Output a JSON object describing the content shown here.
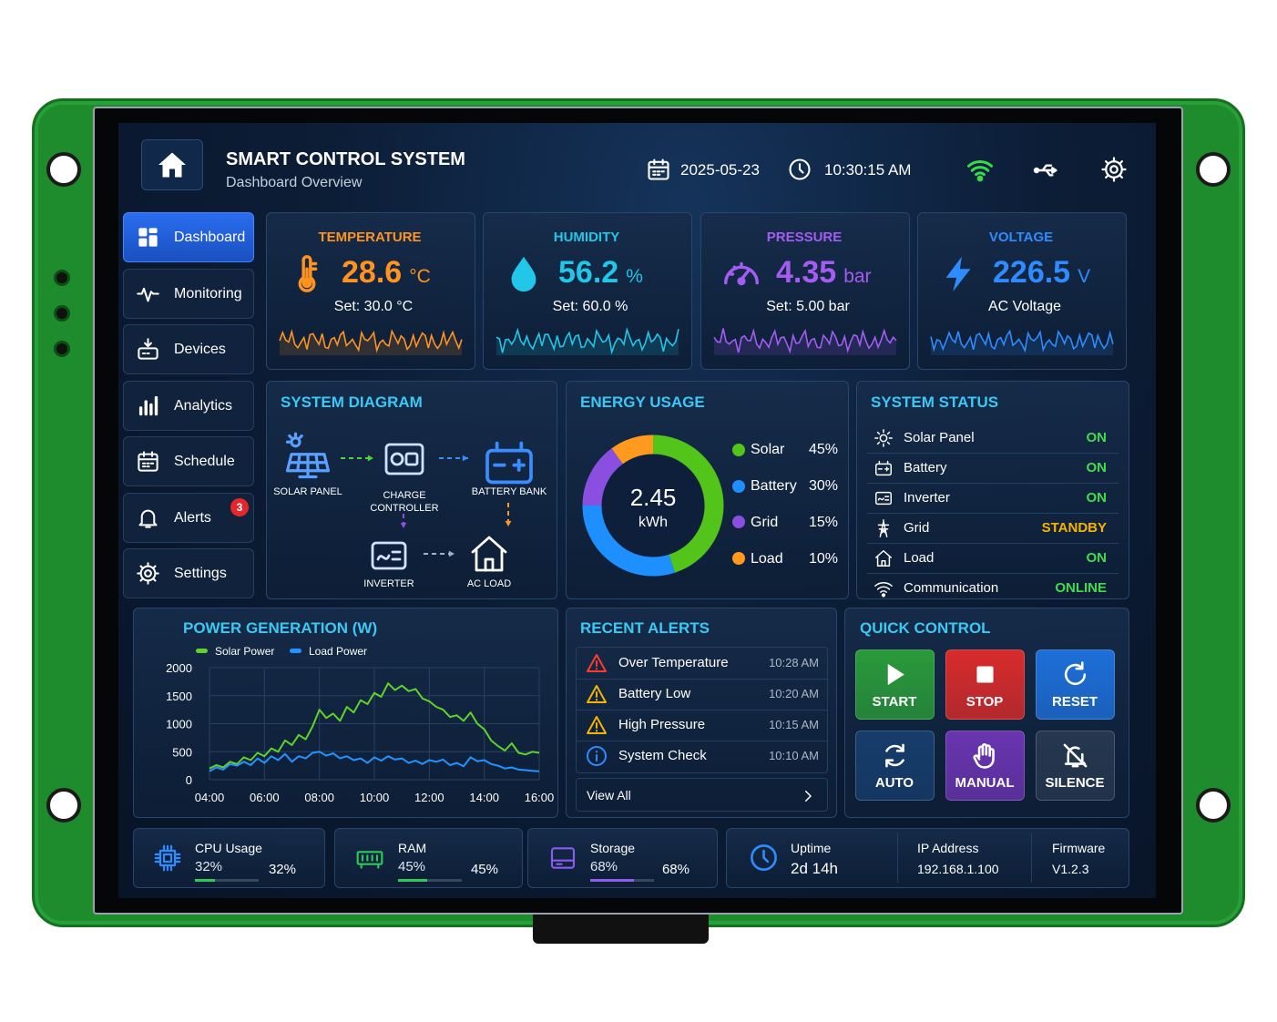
{
  "header": {
    "title": "SMART CONTROL SYSTEM",
    "subtitle": "Dashboard Overview",
    "date": "2025-05-23",
    "time": "10:30:15 AM"
  },
  "nav": [
    {
      "label": "Dashboard",
      "active": true
    },
    {
      "label": "Monitoring"
    },
    {
      "label": "Devices"
    },
    {
      "label": "Analytics"
    },
    {
      "label": "Schedule"
    },
    {
      "label": "Alerts",
      "badge": 3
    },
    {
      "label": "Settings"
    }
  ],
  "cards": [
    {
      "title": "TEMPERATURE",
      "value": 28.6,
      "unit": "°C",
      "setpoint": "Set: 30.0 °C",
      "color": "#ff9321"
    },
    {
      "title": "HUMIDITY",
      "value": 56.2,
      "unit": "%",
      "setpoint": "Set: 60.0 %",
      "color": "#22c6e8"
    },
    {
      "title": "PRESSURE",
      "value": 4.35,
      "unit": "bar",
      "setpoint": "Set: 5.00 bar",
      "color": "#a45cf2"
    },
    {
      "title": "VOLTAGE",
      "value": 226.5,
      "unit": "V",
      "setpoint": "AC Voltage",
      "color": "#2f8cff"
    }
  ],
  "diagram": {
    "title": "SYSTEM DIAGRAM",
    "nodes": [
      "SOLAR PANEL",
      "CHARGE CONTROLLER",
      "BATTERY BANK",
      "INVERTER",
      "AC LOAD"
    ]
  },
  "status": {
    "title": "SYSTEM STATUS",
    "items": [
      {
        "name": "Solar Panel",
        "state": "ON",
        "color": "#3fdc4e"
      },
      {
        "name": "Battery",
        "state": "ON",
        "color": "#3fdc4e"
      },
      {
        "name": "Inverter",
        "state": "ON",
        "color": "#3fdc4e"
      },
      {
        "name": "Grid",
        "state": "STANDBY",
        "color": "#f6b400"
      },
      {
        "name": "Load",
        "state": "ON",
        "color": "#3fdc4e"
      },
      {
        "name": "Communication",
        "state": "ONLINE",
        "color": "#3fdc4e"
      }
    ]
  },
  "alerts": {
    "title": "RECENT ALERTS",
    "items": [
      {
        "text": "Over Temperature",
        "time": "10:28 AM",
        "color": "#ff3b30"
      },
      {
        "text": "Battery Low",
        "time": "10:20 AM",
        "color": "#f6b400"
      },
      {
        "text": "High Pressure",
        "time": "10:15 AM",
        "color": "#f6b400"
      },
      {
        "text": "System Check",
        "time": "10:10 AM",
        "color": "#2f8cff"
      }
    ],
    "view_all": "View All"
  },
  "quick_control": {
    "title": "QUICK CONTROL",
    "buttons": [
      {
        "label": "START",
        "color": "#2a9a3a"
      },
      {
        "label": "STOP",
        "color": "#d92b2b"
      },
      {
        "label": "RESET",
        "color": "#1e6fd9"
      },
      {
        "label": "AUTO",
        "color": "#173d6b"
      },
      {
        "label": "MANUAL",
        "color": "#6a35b0"
      },
      {
        "label": "SILENCE",
        "color": "#26384f"
      }
    ]
  },
  "resources": [
    {
      "label": "CPU Usage",
      "value": 32,
      "value_label": "32%",
      "color": "#2fc95a"
    },
    {
      "label": "RAM",
      "value": 45,
      "value_label": "45%",
      "color": "#2fc95a"
    },
    {
      "label": "Storage",
      "value": 68,
      "value_label": "68%",
      "color": "#8a5cf0"
    }
  ],
  "info": [
    {
      "label": "Uptime",
      "value": "2d 14h"
    },
    {
      "label": "IP Address",
      "value": "192.168.1.100"
    },
    {
      "label": "Firmware",
      "value": "V1.2.3"
    }
  ],
  "chart_data": [
    {
      "type": "pie",
      "title": "ENERGY USAGE",
      "center_value": 2.45,
      "center_unit": "kWh",
      "categories": [
        "Solar",
        "Battery",
        "Grid",
        "Load"
      ],
      "values": [
        45,
        30,
        15,
        10
      ],
      "value_labels": [
        "45%",
        "30%",
        "15%",
        "10%"
      ],
      "colors": [
        "#52c41a",
        "#1e8fff",
        "#8a4fe0",
        "#ff9a1f"
      ]
    },
    {
      "type": "line",
      "title": "POWER GENERATION (W)",
      "grid": true,
      "x": [
        4,
        4.25,
        4.5,
        4.75,
        5,
        5.25,
        5.5,
        5.75,
        6,
        6.25,
        6.5,
        6.75,
        7,
        7.25,
        7.5,
        7.75,
        8,
        8.25,
        8.5,
        8.75,
        9,
        9.25,
        9.5,
        9.75,
        10,
        10.25,
        10.5,
        10.75,
        11,
        11.25,
        11.5,
        11.75,
        12,
        12.25,
        12.5,
        12.75,
        13,
        13.25,
        13.5,
        13.75,
        14,
        14.25,
        14.5,
        14.75,
        15,
        15.25,
        15.5,
        15.75,
        16
      ],
      "xlim": [
        4,
        16
      ],
      "xticks": [
        {
          "value": 4,
          "label": "04:00"
        },
        {
          "value": 6,
          "label": "06:00"
        },
        {
          "value": 8,
          "label": "08:00"
        },
        {
          "value": 10,
          "label": "10:00"
        },
        {
          "value": 12,
          "label": "12:00"
        },
        {
          "value": 14,
          "label": "14:00"
        },
        {
          "value": 16,
          "label": "16:00"
        }
      ],
      "ylim": [
        0,
        2000
      ],
      "yticks": [
        0,
        500,
        1000,
        1500,
        2000
      ],
      "series": [
        {
          "name": "Solar Power",
          "color": "#5fd32a",
          "values": [
            200,
            260,
            220,
            320,
            280,
            400,
            350,
            480,
            420,
            560,
            500,
            700,
            620,
            800,
            720,
            950,
            1250,
            1100,
            1180,
            1050,
            1300,
            1200,
            1420,
            1350,
            1550,
            1480,
            1720,
            1600,
            1680,
            1580,
            1620,
            1450,
            1400,
            1300,
            1250,
            1120,
            1150,
            1050,
            1200,
            1000,
            900,
            700,
            600,
            520,
            650,
            480,
            450,
            500,
            480
          ]
        },
        {
          "name": "Load Power",
          "color": "#2393ff",
          "values": [
            150,
            220,
            180,
            280,
            250,
            320,
            260,
            380,
            300,
            420,
            350,
            460,
            320,
            420,
            380,
            480,
            500,
            430,
            470,
            380,
            420,
            350,
            380,
            300,
            400,
            340,
            420,
            360,
            380,
            300,
            340,
            280,
            350,
            320,
            360,
            260,
            300,
            240,
            400,
            330,
            350,
            280,
            250,
            200,
            220,
            180,
            170,
            160,
            150
          ]
        }
      ]
    }
  ]
}
